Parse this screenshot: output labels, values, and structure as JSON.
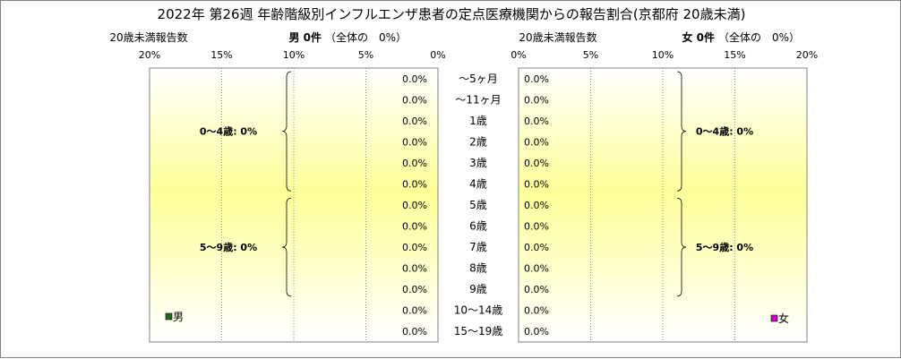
{
  "chart_data": {
    "type": "bar",
    "title": "2022年 第26週  年齢階級別インフルエンザ患者の定点医療機関からの報告割合(京都府 20歳未満)",
    "categories": [
      "～5ヶ月",
      "～11ヶ月",
      "1歳",
      "2歳",
      "3歳",
      "4歳",
      "5歳",
      "6歳",
      "7歳",
      "8歳",
      "9歳",
      "10～14歳",
      "15～19歳"
    ],
    "axis_ticks": [
      "20%",
      "15%",
      "10%",
      "5%",
      "0%"
    ],
    "axis_ticks_right": [
      "0%",
      "5%",
      "10%",
      "15%",
      "20%"
    ],
    "xlim": [
      0,
      20
    ],
    "male": {
      "header_label": "20歳未満報告数",
      "summary": "男 0件",
      "share": "（全体の　0%）",
      "legend": "男",
      "color": "#1e6b1e",
      "values": [
        0,
        0,
        0,
        0,
        0,
        0,
        0,
        0,
        0,
        0,
        0,
        0,
        0
      ],
      "value_labels": [
        "0.0%",
        "0.0%",
        "0.0%",
        "0.0%",
        "0.0%",
        "0.0%",
        "0.0%",
        "0.0%",
        "0.0%",
        "0.0%",
        "0.0%",
        "0.0%",
        "0.0%"
      ],
      "group_labels": [
        "0～4歳: 0%",
        "5～9歳: 0%"
      ]
    },
    "female": {
      "header_label": "20歳未満報告数",
      "summary": "女 0件",
      "share": "（全体の　0%）",
      "legend": "女",
      "color": "#cc00cc",
      "values": [
        0,
        0,
        0,
        0,
        0,
        0,
        0,
        0,
        0,
        0,
        0,
        0,
        0
      ],
      "value_labels": [
        "0.0%",
        "0.0%",
        "0.0%",
        "0.0%",
        "0.0%",
        "0.0%",
        "0.0%",
        "0.0%",
        "0.0%",
        "0.0%",
        "0.0%",
        "0.0%",
        "0.0%"
      ],
      "group_labels": [
        "0～4歳: 0%",
        "5～9歳: 0%"
      ]
    },
    "grid": true
  }
}
